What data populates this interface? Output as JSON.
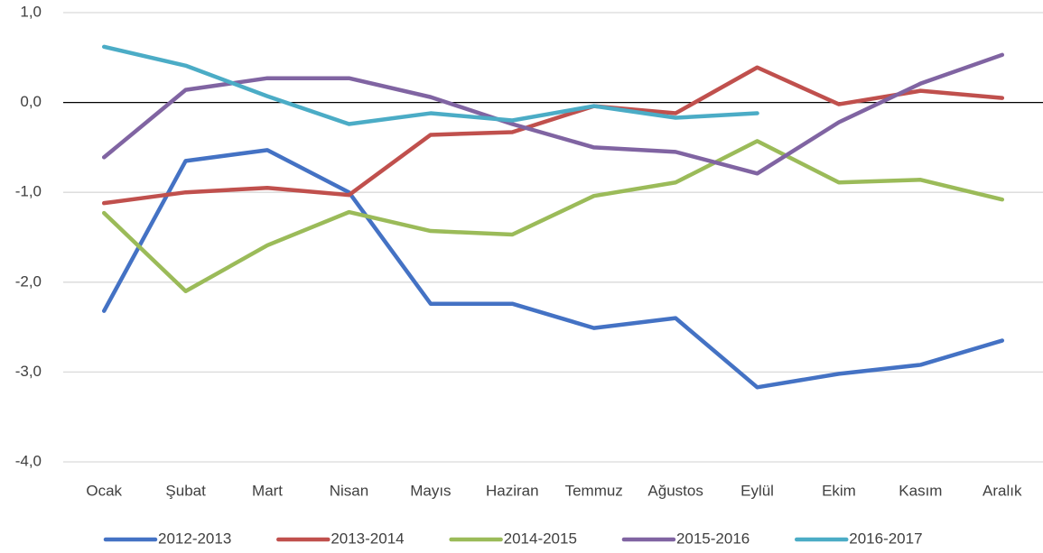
{
  "chart_data": {
    "type": "line",
    "categories": [
      "Ocak",
      "Şubat",
      "Mart",
      "Nisan",
      "Mayıs",
      "Haziran",
      "Temmuz",
      "Ağustos",
      "Eylül",
      "Ekim",
      "Kasım",
      "Aralık"
    ],
    "series": [
      {
        "name": "2012-2013",
        "color": "#4472c4",
        "values": [
          -2.32,
          -0.65,
          -0.53,
          -1.0,
          -2.24,
          -2.24,
          -2.51,
          -2.4,
          -3.17,
          -3.02,
          -2.92,
          -2.65
        ]
      },
      {
        "name": "2013-2014",
        "color": "#c0504d",
        "values": [
          -1.12,
          -1.0,
          -0.95,
          -1.03,
          -0.36,
          -0.33,
          -0.04,
          -0.12,
          0.39,
          -0.02,
          0.13,
          0.05
        ]
      },
      {
        "name": "2014-2015",
        "color": "#9bbb59",
        "values": [
          -1.23,
          -2.1,
          -1.59,
          -1.22,
          -1.43,
          -1.47,
          -1.04,
          -0.89,
          -0.43,
          -0.89,
          -0.86,
          -1.08
        ]
      },
      {
        "name": "2015-2016",
        "color": "#8064a2",
        "values": [
          -0.61,
          0.14,
          0.27,
          0.27,
          0.06,
          -0.24,
          -0.5,
          -0.55,
          -0.79,
          -0.22,
          0.21,
          0.53
        ]
      },
      {
        "name": "2016-2017",
        "color": "#4bacc6",
        "values": [
          0.62,
          0.41,
          0.07,
          -0.24,
          -0.12,
          -0.2,
          -0.04,
          -0.17,
          -0.12,
          null,
          null,
          null
        ]
      }
    ],
    "ylim": [
      -4,
      1
    ],
    "yticks": [
      {
        "value": 1,
        "label": "1,0"
      },
      {
        "value": 0,
        "label": "0,0"
      },
      {
        "value": -1,
        "label": "-1,0"
      },
      {
        "value": -2,
        "label": "-2,0"
      },
      {
        "value": -3,
        "label": "-3,0"
      },
      {
        "value": -4,
        "label": "-4,0"
      }
    ],
    "grid": true,
    "legend": "bottom"
  }
}
